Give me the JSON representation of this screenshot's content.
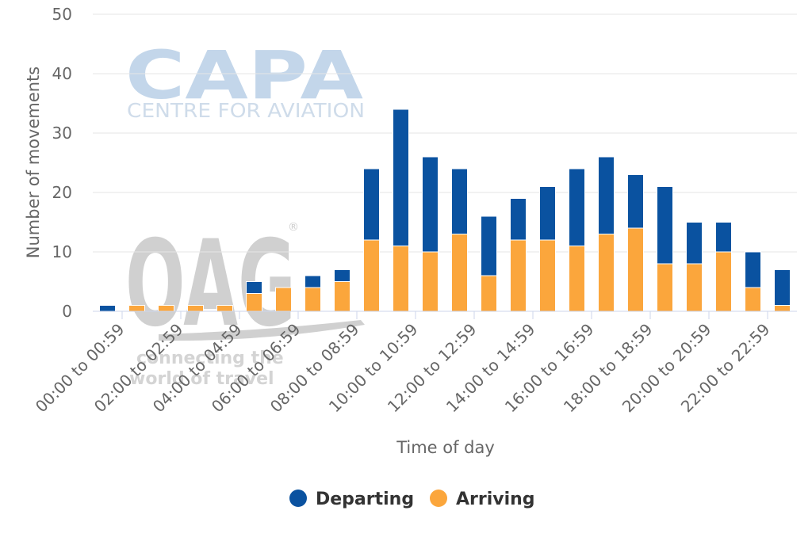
{
  "watermarks": {
    "capa_logo": "CAPA",
    "capa_tagline": "CENTRE FOR AVIATION",
    "oag_logo": "OAG",
    "oag_tagline_line1": "connecting the",
    "oag_tagline_line2": "world of travel"
  },
  "chart_data": {
    "type": "bar",
    "stacked": true,
    "categories": [
      "00:00 to 00:59",
      "01:00 to 01:59",
      "02:00 to 02:59",
      "03:00 to 03:59",
      "04:00 to 04:59",
      "05:00 to 05:59",
      "06:00 to 06:59",
      "07:00 to 07:59",
      "08:00 to 08:59",
      "09:00 to 09:59",
      "10:00 to 10:59",
      "11:00 to 11:59",
      "12:00 to 12:59",
      "13:00 to 13:59",
      "14:00 to 14:59",
      "15:00 to 15:59",
      "16:00 to 16:59",
      "17:00 to 17:59",
      "18:00 to 18:59",
      "19:00 to 19:59",
      "20:00 to 20:59",
      "21:00 to 21:59",
      "22:00 to 22:59",
      "23:00 to 23:59"
    ],
    "tick_labels": [
      "00:00 to 00:59",
      "02:00 to 02:59",
      "04:00 to 04:59",
      "06:00 to 06:59",
      "08:00 to 08:59",
      "10:00 to 10:59",
      "12:00 to 12:59",
      "14:00 to 14:59",
      "16:00 to 16:59",
      "18:00 to 18:59",
      "20:00 to 20:59",
      "22:00 to 22:59"
    ],
    "series": [
      {
        "name": "Departing",
        "color": "#0a52a0",
        "values": [
          1,
          0,
          0,
          0,
          0,
          2,
          0,
          2,
          2,
          12,
          23,
          16,
          11,
          10,
          7,
          9,
          13,
          13,
          9,
          13,
          7,
          5,
          6,
          6
        ]
      },
      {
        "name": "Arriving",
        "color": "#fba63c",
        "values": [
          0,
          1,
          1,
          1,
          1,
          3,
          4,
          4,
          5,
          12,
          11,
          10,
          13,
          6,
          12,
          12,
          11,
          13,
          14,
          8,
          8,
          10,
          4,
          1
        ]
      }
    ],
    "xlabel": "Time of day",
    "ylabel": "Number of movements",
    "ylim": [
      0,
      50
    ],
    "yticks": [
      0,
      10,
      20,
      30,
      40,
      50
    ],
    "grid": true,
    "legend_position": "bottom-center"
  }
}
